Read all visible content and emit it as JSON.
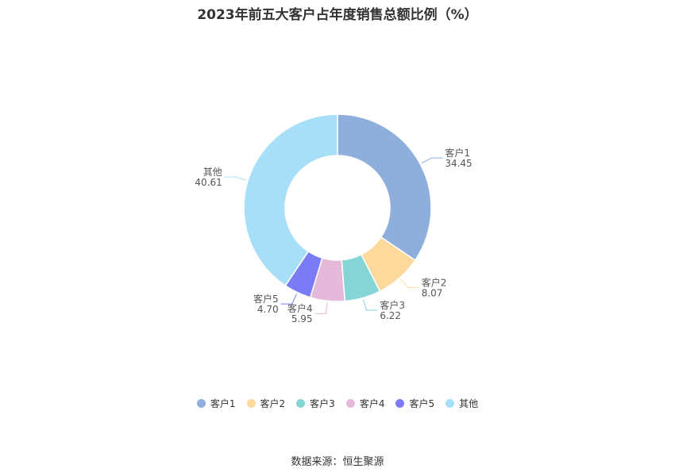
{
  "chart_data": {
    "type": "pie",
    "title": "2023年前五大客户占年度销售总额比例（%）",
    "categories": [
      "客户1",
      "客户2",
      "客户3",
      "客户4",
      "客户5",
      "其他"
    ],
    "values": [
      34.45,
      8.07,
      6.22,
      5.95,
      4.7,
      40.61
    ],
    "value_labels": [
      "34.45",
      "8.07",
      "6.22",
      "5.95",
      "4.70",
      "40.61"
    ],
    "colors": [
      "#8eaedb",
      "#fdd99b",
      "#85d5d6",
      "#e5b9d9",
      "#7b7cf5",
      "#a8dff8"
    ],
    "donut": true,
    "legend_position": "bottom"
  },
  "source_text": "数据来源：恒生聚源"
}
